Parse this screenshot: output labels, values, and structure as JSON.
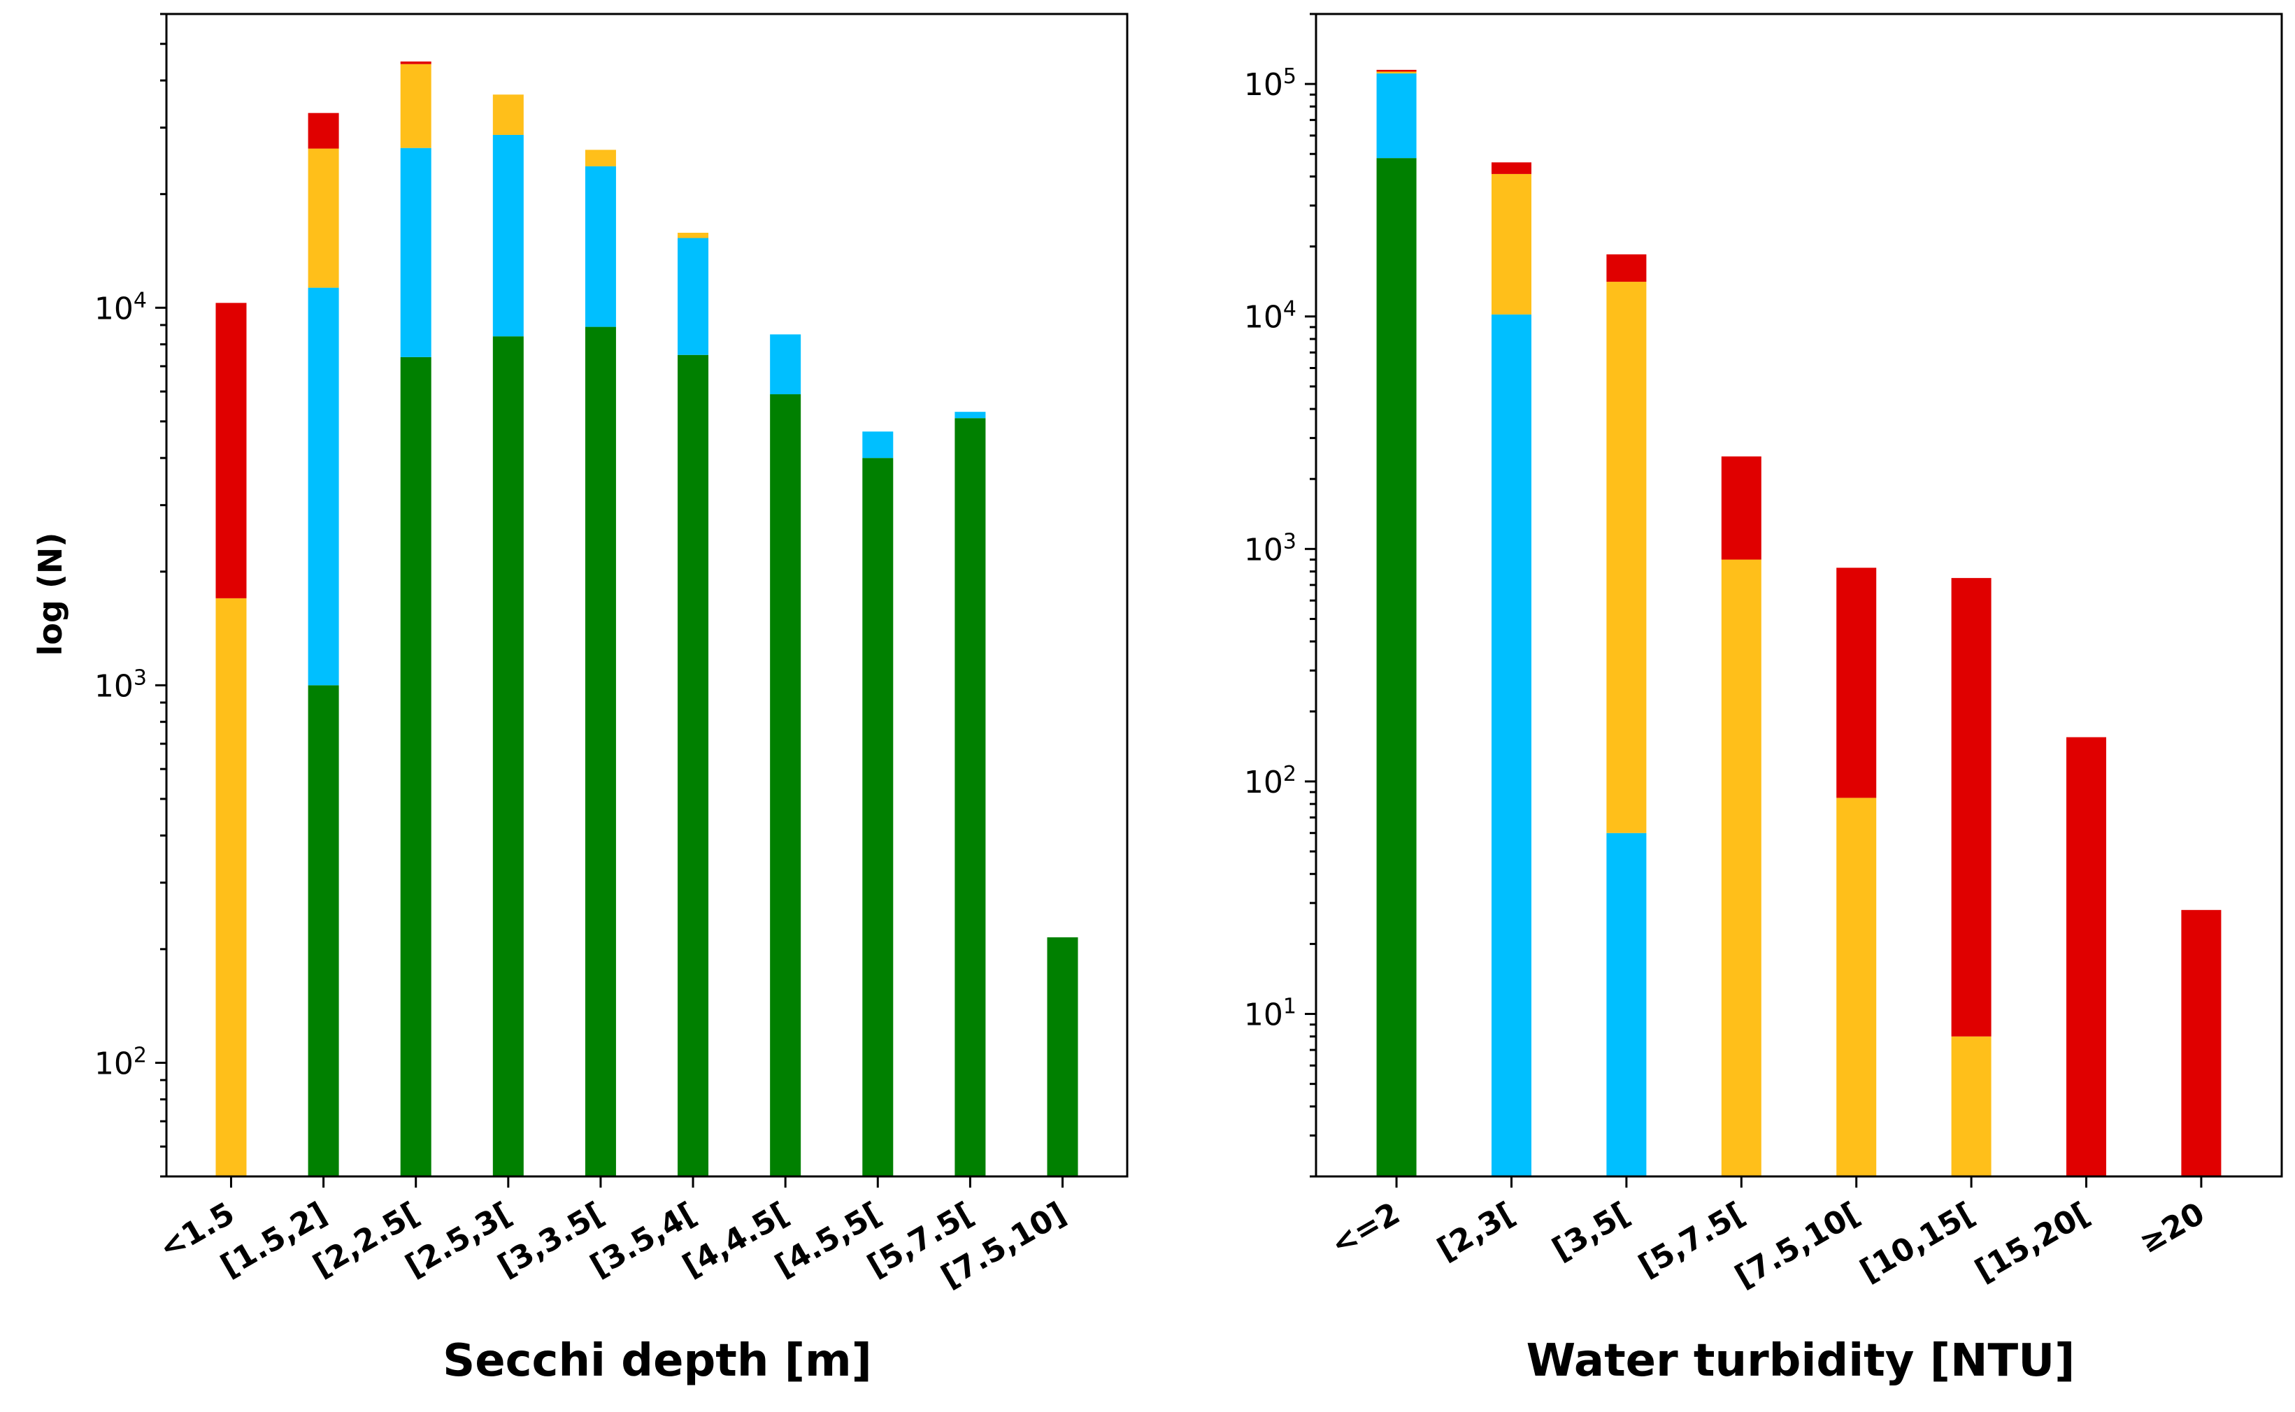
{
  "colors": {
    "green": "#008000",
    "blue": "#00bfff",
    "orange": "#ffbf1a",
    "red": "#e00000"
  },
  "chart_data": [
    {
      "type": "bar",
      "stacked": true,
      "yscale": "log",
      "ylim": [
        50,
        60000
      ],
      "ylabel": "log (N)",
      "xlabel": "Secchi depth [m]",
      "categories": [
        "<1.5",
        "[1.5,2]",
        "[2,2.5[",
        "[2.5,3[",
        "[3,3.5[",
        "[3.5,4[",
        "[4,4.5[",
        "[4.5,5[",
        "[5,7.5[",
        "[7.5,10]"
      ],
      "yticks": [
        {
          "value": 100,
          "mant": "10",
          "exp": "2"
        },
        {
          "value": 1000,
          "mant": "10",
          "exp": "3"
        },
        {
          "value": 10000,
          "mant": "10",
          "exp": "4"
        }
      ],
      "series": [
        {
          "name": "green",
          "color": "#008000",
          "values": [
            0,
            1000,
            7400,
            8400,
            8900,
            7500,
            5900,
            4000,
            5100,
            215
          ]
        },
        {
          "name": "blue",
          "color": "#00bfff",
          "values": [
            0,
            10300,
            19100,
            20300,
            14800,
            7800,
            2600,
            700,
            200,
            0
          ]
        },
        {
          "name": "orange",
          "color": "#ffbf1a",
          "values": [
            1700,
            15100,
            17700,
            8000,
            2500,
            500,
            0,
            0,
            0,
            0
          ]
        },
        {
          "name": "red",
          "color": "#e00000",
          "values": [
            8600,
            6400,
            700,
            0,
            0,
            0,
            0,
            0,
            0,
            0
          ]
        }
      ]
    },
    {
      "type": "bar",
      "stacked": true,
      "yscale": "log",
      "ylim": [
        2,
        200000
      ],
      "ylabel": "",
      "xlabel": "Water turbidity [NTU]",
      "categories": [
        "<=2",
        "[2,3[",
        "[3,5[",
        "[5,7.5[",
        "[7.5,10[",
        "[10,15[",
        "[15,20[",
        "≥20"
      ],
      "yticks": [
        {
          "value": 10,
          "mant": "10",
          "exp": "1"
        },
        {
          "value": 100,
          "mant": "10",
          "exp": "2"
        },
        {
          "value": 1000,
          "mant": "10",
          "exp": "3"
        },
        {
          "value": 10000,
          "mant": "10",
          "exp": "4"
        },
        {
          "value": 100000,
          "mant": "10",
          "exp": "5"
        }
      ],
      "series": [
        {
          "name": "green",
          "color": "#008000",
          "values": [
            48000,
            0,
            0,
            0,
            0,
            0,
            0,
            0
          ]
        },
        {
          "name": "blue",
          "color": "#00bfff",
          "values": [
            63000,
            10200,
            60,
            0,
            0,
            0,
            0,
            0
          ]
        },
        {
          "name": "orange",
          "color": "#ffbf1a",
          "values": [
            2000,
            30800,
            14040,
            900,
            85,
            8,
            0,
            0
          ]
        },
        {
          "name": "red",
          "color": "#e00000",
          "values": [
            2000,
            5000,
            4400,
            1600,
            745,
            742,
            155,
            28
          ]
        }
      ]
    }
  ]
}
